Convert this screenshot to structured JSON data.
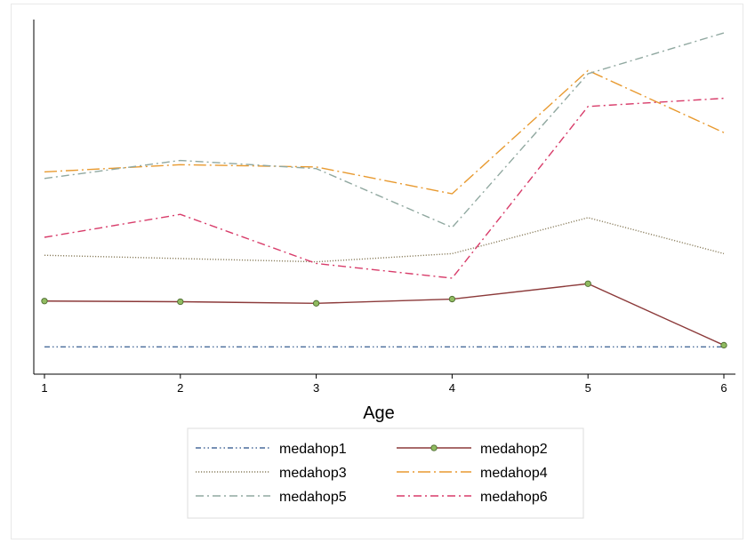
{
  "chart_data": {
    "type": "line",
    "title": "",
    "xlabel": "Age",
    "ylabel": "",
    "x": [
      1,
      2,
      3,
      4,
      5,
      6
    ],
    "xlim": [
      1,
      6
    ],
    "ylim": [
      0,
      100
    ],
    "grid": false,
    "legend_position": "bottom",
    "series": [
      {
        "name": "medahop1",
        "values": [
          4,
          4,
          4,
          4,
          4,
          4
        ],
        "color": "#4a6c9b",
        "dash": "dash-dot-dot"
      },
      {
        "name": "medahop2",
        "values": [
          18,
          17.8,
          17.3,
          18.6,
          23.3,
          4.5
        ],
        "color": "#8c3a3a",
        "dash": "solid",
        "marker": "circle",
        "marker_fill": "#90bb60"
      },
      {
        "name": "medahop3",
        "values": [
          32,
          31,
          30,
          32.5,
          43.5,
          32.5
        ],
        "color": "#8c8060",
        "dash": "dotted"
      },
      {
        "name": "medahop4",
        "values": [
          57.5,
          59.7,
          59,
          50.8,
          88.5,
          69.5
        ],
        "color": "#e89a30",
        "dash": "long-dash-dot"
      },
      {
        "name": "medahop5",
        "values": [
          55.5,
          61,
          58.5,
          40.5,
          87.5,
          100
        ],
        "color": "#90a8a0",
        "dash": "dash-dot"
      },
      {
        "name": "medahop6",
        "values": [
          37.5,
          44.5,
          29.5,
          25,
          77.5,
          80
        ],
        "color": "#d83c6a",
        "dash": "dash-dot"
      }
    ]
  }
}
